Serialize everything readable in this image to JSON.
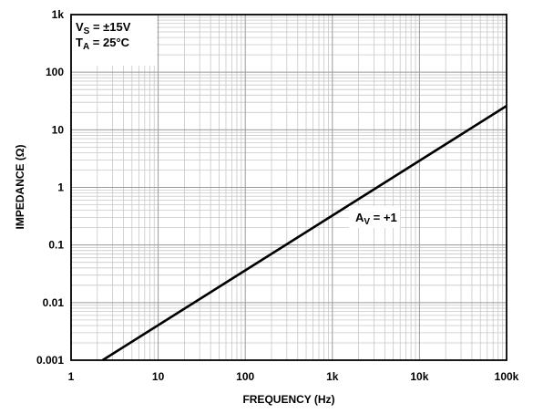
{
  "chart_data": {
    "type": "line",
    "xlabel": "FREQUENCY (Hz)",
    "ylabel": "IMPEDANCE (Ω)",
    "x_scale": "log",
    "y_scale": "log",
    "xlim": [
      1,
      100000
    ],
    "ylim": [
      0.001,
      1000
    ],
    "grid": true,
    "x_ticks": [
      {
        "value": 1,
        "label": "1"
      },
      {
        "value": 10,
        "label": "10"
      },
      {
        "value": 100,
        "label": "100"
      },
      {
        "value": 1000,
        "label": "1k"
      },
      {
        "value": 10000,
        "label": "10k"
      },
      {
        "value": 100000,
        "label": "100k"
      }
    ],
    "y_ticks": [
      {
        "value": 0.001,
        "label": "0.001"
      },
      {
        "value": 0.01,
        "label": "0.01"
      },
      {
        "value": 0.1,
        "label": "0.1"
      },
      {
        "value": 1,
        "label": "1"
      },
      {
        "value": 10,
        "label": "10"
      },
      {
        "value": 100,
        "label": "100"
      },
      {
        "value": 1000,
        "label": "1k"
      }
    ],
    "series": [
      {
        "x": [
          2.3,
          100000
        ],
        "y": [
          0.001,
          26
        ]
      }
    ],
    "annotations": [
      {
        "main": "V",
        "sub": "S",
        "rest": " = ±15V"
      },
      {
        "main": "T",
        "sub": "A",
        "rest": " = 25°C"
      },
      {
        "main": "A",
        "sub": "V",
        "rest": " = +1"
      }
    ]
  }
}
